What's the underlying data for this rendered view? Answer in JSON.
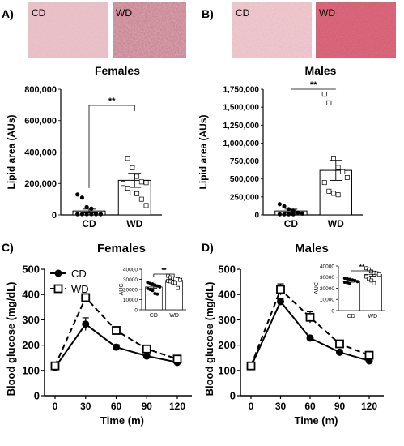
{
  "panels": {
    "A": {
      "label": "A)",
      "img_left": "CD",
      "img_right": "WD"
    },
    "B": {
      "label": "B)",
      "img_left": "CD",
      "img_right": "WD"
    },
    "C": {
      "label": "C)"
    },
    "D": {
      "label": "D)"
    }
  },
  "colors": {
    "histo_cd": "#e6b8bf",
    "histo_wd_f": "#c97f8f",
    "histo_wd_m": "#cf4f63",
    "axis": "#000000"
  },
  "chart_data": [
    {
      "id": "females-lipid",
      "type": "bar",
      "title": "Females",
      "categories": [
        "CD",
        "WD"
      ],
      "values": [
        25000,
        220000
      ],
      "errors": [
        12000,
        45000
      ],
      "points": [
        [
          130000,
          110000,
          50000,
          40000,
          8000,
          5000,
          5000,
          5000,
          5000,
          5000,
          5000,
          5000
        ],
        [
          630000,
          360000,
          300000,
          245000,
          210000,
          205000,
          200000,
          170000,
          140000,
          135000,
          100000,
          60000
        ]
      ],
      "ylabel": "Lipid area (AUs)",
      "ylim": [
        0,
        800000
      ],
      "yticks": [
        "0",
        "200,000",
        "400,000",
        "600,000",
        "800,000"
      ],
      "significance": "**"
    },
    {
      "id": "males-lipid",
      "type": "bar",
      "title": "Males",
      "categories": [
        "CD",
        "WD"
      ],
      "values": [
        55000,
        620000
      ],
      "errors": [
        25000,
        140000
      ],
      "points": [
        [
          150000,
          120000,
          80000,
          60000,
          30000,
          20000,
          10000,
          10000,
          10000,
          10000
        ],
        [
          1680000,
          1560000,
          790000,
          660000,
          600000,
          520000,
          450000,
          330000,
          300000,
          280000
        ]
      ],
      "ylabel": "Lipid area (AUs)",
      "ylim": [
        0,
        1750000
      ],
      "yticks": [
        "0",
        "250,000",
        "500,000",
        "750,000",
        "1,000,000",
        "1,250,000",
        "1,500,000",
        "1,750,000"
      ],
      "significance": "**"
    },
    {
      "id": "females-gtt",
      "type": "line",
      "title": "Females",
      "x": [
        0,
        30,
        60,
        90,
        120
      ],
      "series": [
        {
          "name": "CD",
          "values": [
            112,
            283,
            192,
            157,
            132
          ],
          "errors": [
            8,
            25,
            10,
            6,
            6
          ]
        },
        {
          "name": "WD",
          "values": [
            118,
            388,
            258,
            185,
            145
          ],
          "errors": [
            6,
            15,
            12,
            8,
            8
          ]
        }
      ],
      "xlabel": "Time (m)",
      "ylabel": "Blood glucose (mg/dL)",
      "xticks": [
        "0",
        "30",
        "60",
        "90",
        "120"
      ],
      "ylim": [
        0,
        500
      ],
      "yticks": [
        "0",
        "100",
        "200",
        "300",
        "400",
        "500"
      ]
    },
    {
      "id": "females-auc",
      "type": "bar",
      "categories": [
        "CD",
        "WD"
      ],
      "values": [
        22500,
        29000
      ],
      "errors": [
        1200,
        900
      ],
      "points": [
        [
          27000,
          26000,
          25500,
          24500,
          23500,
          22500,
          21000,
          20000,
          19000,
          16000,
          15500
        ],
        [
          33500,
          32000,
          31000,
          30500,
          30000,
          29500,
          28500,
          28000,
          27000,
          26500,
          21500
        ]
      ],
      "ylabel": "AUC",
      "ylim": [
        0,
        40000
      ],
      "yticks": [
        "0",
        "10000",
        "20000",
        "30000",
        "40000"
      ],
      "significance": "**"
    },
    {
      "id": "males-gtt",
      "type": "line",
      "title": "Males",
      "x": [
        0,
        30,
        60,
        90,
        120
      ],
      "series": [
        {
          "name": "CD",
          "values": [
            115,
            372,
            228,
            172,
            138
          ],
          "errors": [
            6,
            10,
            8,
            5,
            5
          ]
        },
        {
          "name": "WD",
          "values": [
            118,
            420,
            310,
            205,
            160
          ],
          "errors": [
            6,
            22,
            22,
            10,
            8
          ]
        }
      ],
      "xlabel": "Time (m)",
      "ylabel": "Blood glucose (mg/dL)",
      "xticks": [
        "0",
        "30",
        "60",
        "90",
        "120"
      ],
      "ylim": [
        0,
        500
      ],
      "yticks": [
        "0",
        "100",
        "200",
        "300",
        "400",
        "500"
      ]
    },
    {
      "id": "males-auc",
      "type": "bar",
      "categories": [
        "CD",
        "WD"
      ],
      "values": [
        26500,
        32500
      ],
      "errors": [
        1000,
        1500
      ],
      "points": [
        [
          29000,
          28500,
          28000,
          27500,
          27000,
          26000,
          25500,
          25000,
          24000
        ],
        [
          38000,
          37000,
          35000,
          34000,
          33500,
          32500,
          30500,
          28500,
          27000,
          24500
        ]
      ],
      "ylabel": "AUC",
      "ylim": [
        0,
        40000
      ],
      "yticks": [
        "0",
        "10000",
        "20000",
        "30000",
        "40000"
      ],
      "significance": "**"
    }
  ]
}
